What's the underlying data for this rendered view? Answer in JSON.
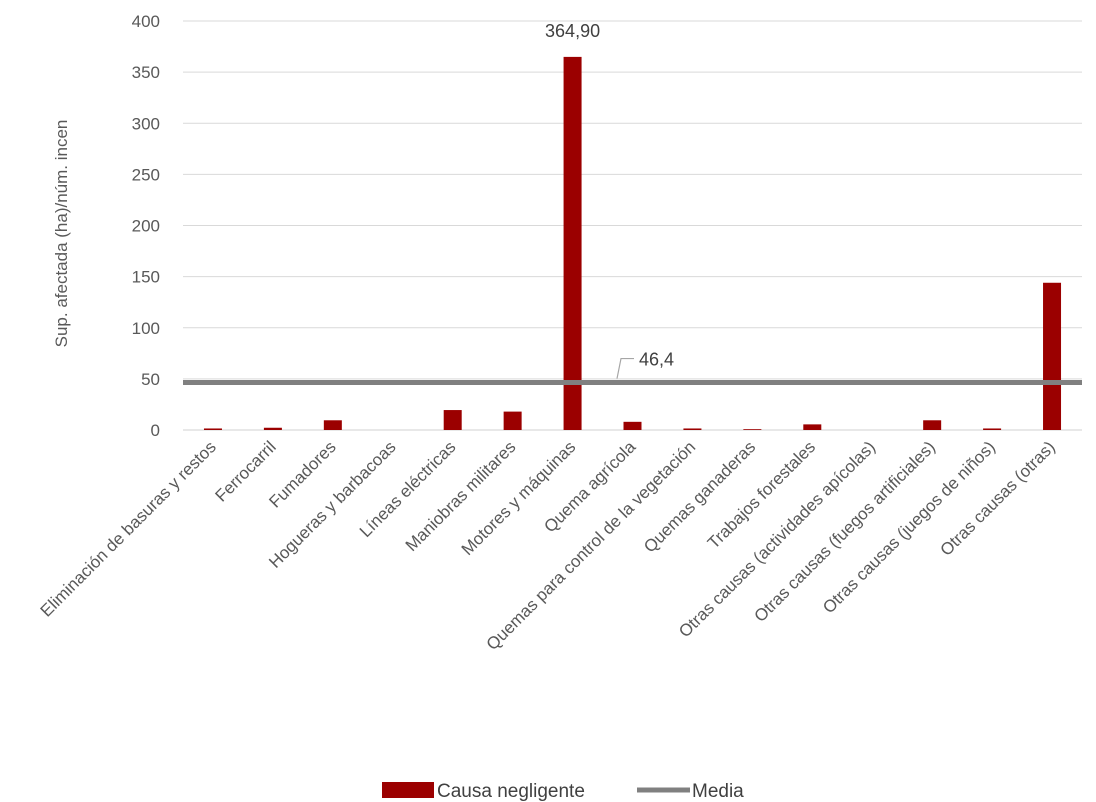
{
  "chart_data": {
    "type": "bar",
    "ylabel": "Sup. afectada (ha)/núm. incen",
    "ylim": [
      0,
      400
    ],
    "yticks": [
      0,
      50,
      100,
      150,
      200,
      250,
      300,
      350,
      400
    ],
    "grid": true,
    "legend_position": "bottom",
    "categories": [
      "Eliminación de basuras y restos",
      "Ferrocarril",
      "Fumadores",
      "Hogueras y barbacoas",
      "Líneas eléctricas",
      "Maniobras militares",
      "Motores y máquinas",
      "Quema agrícola",
      "Quemas para control de la vegetación",
      "Quemas ganaderas",
      "Trabajos forestales",
      "Otras causas (actividades apícolas)",
      "Otras causas (fuegos artificiales)",
      "Otras causas (juegos de niños)",
      "Otras causas (otras)"
    ],
    "series": [
      {
        "name": "Causa negligente",
        "type": "bar",
        "color": "#9B0000",
        "values": [
          1.5,
          2.2,
          9.5,
          0,
          19.5,
          18,
          364.9,
          8,
          1.5,
          0.8,
          5.5,
          0,
          9.5,
          1.5,
          144
        ],
        "data_labels": {
          "6": "364,90"
        }
      },
      {
        "name": "Media",
        "type": "line",
        "color": "#808080",
        "value": 46.4,
        "label": "46,4"
      }
    ]
  }
}
